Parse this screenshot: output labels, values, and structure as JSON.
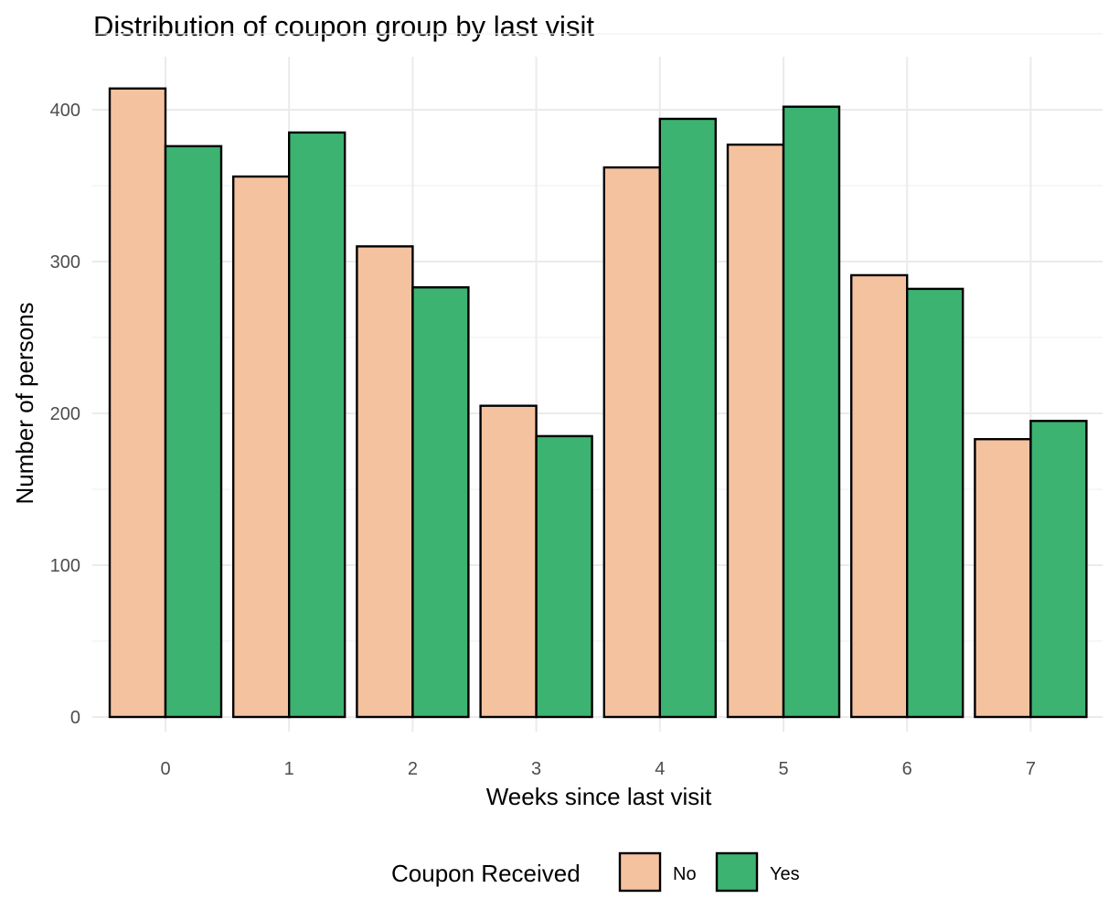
{
  "chart_data": {
    "type": "bar",
    "title": "Distribution of coupon group by last visit",
    "xlabel": "Weeks since last visit",
    "ylabel": "Number of persons",
    "categories": [
      "0",
      "1",
      "2",
      "3",
      "4",
      "5",
      "6",
      "7"
    ],
    "series": [
      {
        "name": "No",
        "color": "#f5c2a0",
        "values": [
          414,
          356,
          310,
          205,
          362,
          377,
          291,
          183
        ]
      },
      {
        "name": "Yes",
        "color": "#3cb371",
        "values": [
          376,
          385,
          283,
          185,
          394,
          402,
          282,
          195
        ]
      }
    ],
    "ylim": [
      0,
      440
    ],
    "yticks": [
      0,
      100,
      200,
      300,
      400
    ],
    "grid": true,
    "legend": {
      "title": "Coupon Received",
      "position": "bottom"
    }
  }
}
